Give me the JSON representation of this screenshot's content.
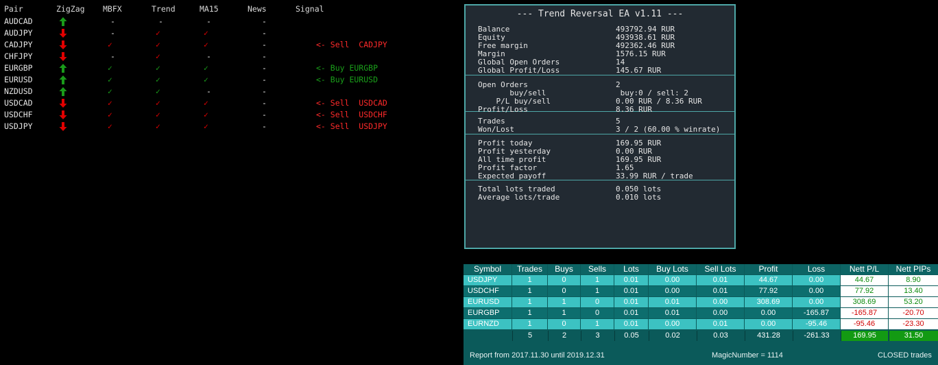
{
  "signals": {
    "headers": [
      "Pair",
      "ZigZag",
      "MBFX",
      "Trend",
      "MA15",
      "News",
      "Signal"
    ],
    "rows": [
      {
        "pair": "AUDCAD",
        "zigzag": "up",
        "mbfx": "-",
        "trend": "-",
        "ma15": "-",
        "news": "-",
        "signal": "",
        "signal_type": "none"
      },
      {
        "pair": "AUDJPY",
        "zigzag": "down",
        "mbfx": "-",
        "trend": "check-red",
        "ma15": "check-red",
        "news": "-",
        "signal": "",
        "signal_type": "none"
      },
      {
        "pair": "CADJPY",
        "zigzag": "down",
        "mbfx": "check-red",
        "trend": "check-red",
        "ma15": "check-red",
        "news": "-",
        "signal": "<- Sell  CADJPY",
        "signal_type": "sell"
      },
      {
        "pair": "CHFJPY",
        "zigzag": "down",
        "mbfx": "-",
        "trend": "check-red",
        "ma15": "-",
        "news": "-",
        "signal": "",
        "signal_type": "none"
      },
      {
        "pair": "EURGBP",
        "zigzag": "up",
        "mbfx": "check-green",
        "trend": "check-green",
        "ma15": "check-green",
        "news": "-",
        "signal": "<- Buy EURGBP",
        "signal_type": "buy"
      },
      {
        "pair": "EURUSD",
        "zigzag": "up",
        "mbfx": "check-green",
        "trend": "check-green",
        "ma15": "check-green",
        "news": "-",
        "signal": "<- Buy EURUSD",
        "signal_type": "buy"
      },
      {
        "pair": "NZDUSD",
        "zigzag": "up",
        "mbfx": "check-green",
        "trend": "check-green",
        "ma15": "-",
        "news": "-",
        "signal": "",
        "signal_type": "none"
      },
      {
        "pair": "USDCAD",
        "zigzag": "down",
        "mbfx": "check-red",
        "trend": "check-red",
        "ma15": "check-red",
        "news": "-",
        "signal": "<- Sell  USDCAD",
        "signal_type": "sell"
      },
      {
        "pair": "USDCHF",
        "zigzag": "down",
        "mbfx": "check-red",
        "trend": "check-red",
        "ma15": "check-red",
        "news": "-",
        "signal": "<- Sell  USDCHF",
        "signal_type": "sell"
      },
      {
        "pair": "USDJPY",
        "zigzag": "down",
        "mbfx": "check-red",
        "trend": "check-red",
        "ma15": "check-red",
        "news": "-",
        "signal": "<- Sell  USDJPY",
        "signal_type": "sell"
      }
    ],
    "colors": {
      "up": "#1a9a1a",
      "down": "#e00000",
      "sell": "#ff2a2a",
      "buy": "#1aa01a"
    }
  },
  "ea": {
    "title": "--- Trend Reversal EA v1.11 ---",
    "sections": [
      [
        {
          "k": "Balance",
          "v": "493792.94 RUR"
        },
        {
          "k": "Equity",
          "v": "493938.61 RUR"
        },
        {
          "k": "Free margin",
          "v": "492362.46 RUR"
        },
        {
          "k": "Margin",
          "v": "1576.15 RUR"
        },
        {
          "k": "Global Open Orders",
          "v": "14"
        },
        {
          "k": "Global Profit/Loss",
          "v": "145.67 RUR"
        }
      ],
      [
        {
          "k": "Open Orders",
          "v": "2"
        },
        {
          "k": "       buy/sell",
          "v": " buy:0 / sell: 2"
        },
        {
          "k": "    P/L buy/sell",
          "v": "0.00 RUR / 8.36 RUR"
        },
        {
          "k": "Profit/Loss",
          "v": "8.36 RUR"
        }
      ],
      [
        {
          "k": "Trades",
          "v": "5"
        },
        {
          "k": "Won/Lost",
          "v": "3 / 2 (60.00 % winrate)"
        }
      ],
      [
        {
          "k": "Profit today",
          "v": "169.95 RUR"
        },
        {
          "k": "Profit yesterday",
          "v": "0.00 RUR"
        },
        {
          "k": "All time profit",
          "v": "169.95 RUR"
        },
        {
          "k": "Profit factor",
          "v": "1.65"
        },
        {
          "k": "Expected payoff",
          "v": "33.99 RUR / trade"
        }
      ],
      [
        {
          "k": "Total lots traded",
          "v": "0.050 lots"
        },
        {
          "k": "Average lots/trade",
          "v": "0.010 lots"
        }
      ]
    ]
  },
  "report": {
    "headers": [
      "Symbol",
      "Trades",
      "Buys",
      "Sells",
      "Lots",
      "Buy Lots",
      "Sell Lots",
      "Profit",
      "Loss",
      "Nett P/L",
      "Nett PIPs"
    ],
    "rows": [
      [
        "USDJPY",
        "1",
        "0",
        "1",
        "0.01",
        "0.00",
        "0.01",
        "44.67",
        "0.00",
        "44.67",
        "8.90"
      ],
      [
        "USDCHF",
        "1",
        "0",
        "1",
        "0.01",
        "0.00",
        "0.01",
        "77.92",
        "0.00",
        "77.92",
        "13.40"
      ],
      [
        "EURUSD",
        "1",
        "1",
        "0",
        "0.01",
        "0.01",
        "0.00",
        "308.69",
        "0.00",
        "308.69",
        "53.20"
      ],
      [
        "EURGBP",
        "1",
        "1",
        "0",
        "0.01",
        "0.01",
        "0.00",
        "0.00",
        "-165.87",
        "-165.87",
        "-20.70"
      ],
      [
        "EURNZD",
        "1",
        "0",
        "1",
        "0.01",
        "0.00",
        "0.01",
        "0.00",
        "-95.46",
        "-95.46",
        "-23.30"
      ]
    ],
    "totals": [
      "",
      "5",
      "2",
      "3",
      "0.05",
      "0.02",
      "0.03",
      "431.28",
      "-261.33",
      "169.95",
      "31.50"
    ],
    "footer": {
      "range": "Report from 2017.11.30 until 2019.12.31",
      "magic": "MagicNumber = 1114",
      "mode": "CLOSED trades"
    }
  }
}
